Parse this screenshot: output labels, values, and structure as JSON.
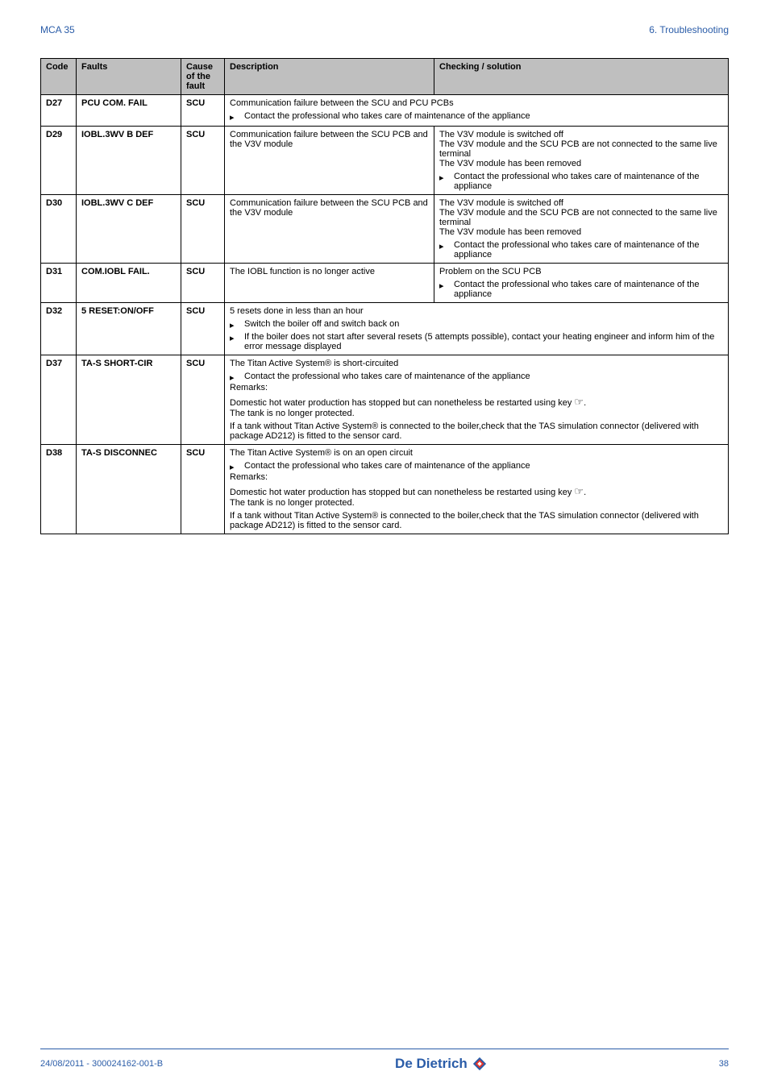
{
  "header": {
    "left": "MCA 35",
    "right": "6.  Troubleshooting"
  },
  "colors": {
    "accent": "#2a5ca8",
    "headerBg": "#bfbfbf",
    "border": "#000000",
    "logoRed": "#e63329",
    "background": "#ffffff"
  },
  "table": {
    "columns": [
      "Code",
      "Faults",
      "Cause of the fault",
      "Description",
      "Checking / solution"
    ],
    "rows": [
      {
        "code": "D27",
        "fault": "PCU COM. FAIL",
        "cause": "SCU",
        "mergedTop": "Communication failure between the SCU and PCU PCBs",
        "mergedBullet": "Contact the professional who takes care of maintenance of the appliance"
      },
      {
        "code": "D29",
        "fault": "IOBL.3WV B DEF",
        "cause": "SCU",
        "description": "Communication failure between the SCU PCB and the V3V module",
        "checkTop": "The V3V module is switched off\nThe V3V module and the SCU PCB are not connected to the same live terminal\nThe V3V module has been removed",
        "checkBullet": "Contact the professional who takes care of maintenance of the appliance"
      },
      {
        "code": "D30",
        "fault": "IOBL.3WV C DEF",
        "cause": "SCU",
        "description": "Communication failure between the SCU PCB and the V3V module",
        "checkTop": "The V3V module is switched off\nThe V3V module and the SCU PCB are not connected to the same live terminal\nThe V3V module has been removed",
        "checkBullet": "Contact the professional who takes care of maintenance of the appliance"
      },
      {
        "code": "D31",
        "fault": "COM.IOBL FAIL.",
        "cause": "SCU",
        "description": "The IOBL function is no longer active",
        "checkTop": "Problem on the SCU PCB",
        "checkBullet": "Contact the professional who takes care of maintenance of the appliance"
      },
      {
        "code": "D32",
        "fault": "5 RESET:ON/OFF",
        "cause": "SCU",
        "mergedTop": "5 resets done in less than an hour",
        "bullet1": "Switch the boiler off and switch back on",
        "bullet2": "If the boiler does not start after several resets (5 attempts possible), contact your heating engineer and inform him of the error message displayed"
      },
      {
        "code": "D37",
        "fault": "TA-S SHORT-CIR",
        "cause": "SCU",
        "mergedTop": "The Titan Active System® is short-circuited",
        "bullet1": "Contact the professional who takes care of maintenance of the appliance",
        "remarksLabel": "Remarks:",
        "remarks1": "Domestic hot water production has stopped but can nonetheless be restarted using key ",
        "remarks2": "The tank is no longer protected.",
        "remarks3": "If a tank without Titan Active System® is connected to the boiler,check that the TAS simulation connector (delivered with package AD212) is fitted to the sensor card."
      },
      {
        "code": "D38",
        "fault": "TA-S DISCONNEC",
        "cause": "SCU",
        "mergedTop": "The Titan Active System® is on an open circuit",
        "bullet1": "Contact the professional who takes care of maintenance of the appliance",
        "remarksLabel": "Remarks:",
        "remarks1": "Domestic hot water production has stopped but can nonetheless be restarted using key ",
        "remarks2": "The tank is no longer protected.",
        "remarks3": "If a tank without Titan Active System® is connected to the boiler,check that the TAS simulation connector (delivered with package AD212) is fitted to the sensor card."
      }
    ]
  },
  "footer": {
    "left": "24/08/2011  - 300024162-001-B",
    "brand": "De Dietrich",
    "page": "38"
  }
}
